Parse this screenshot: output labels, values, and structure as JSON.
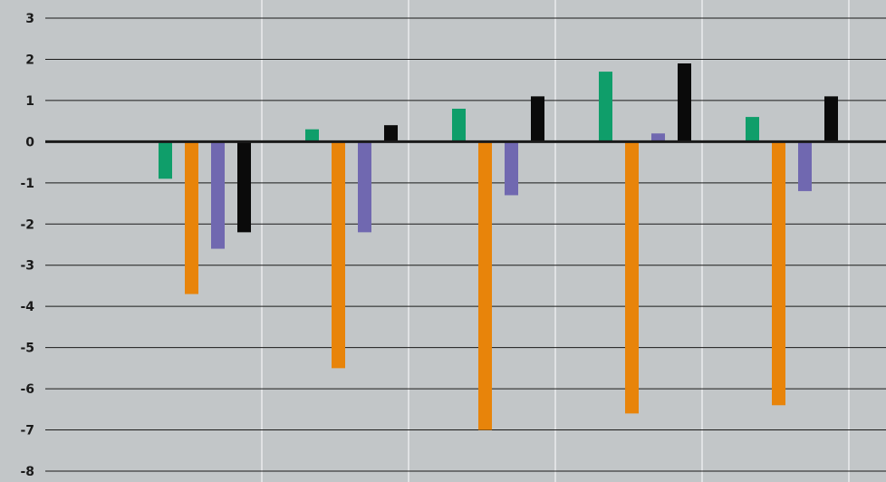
{
  "chart_data": {
    "type": "bar",
    "title": "",
    "xlabel": "",
    "ylabel": "",
    "ylim": [
      -8,
      3
    ],
    "yticks": [
      3,
      2,
      1,
      0,
      -1,
      -2,
      -3,
      -4,
      -5,
      -6,
      -7,
      -8
    ],
    "ytick_labels": [
      "3",
      "2",
      "1",
      "0",
      "-1",
      "-2",
      "-3",
      "-4",
      "-5",
      "-6",
      "-7",
      "-8"
    ],
    "grid": true,
    "legend": "none",
    "categories": [
      "",
      "",
      "",
      "",
      ""
    ],
    "series": [
      {
        "color": "#0f9e6a",
        "values": [
          -0.9,
          0.3,
          0.8,
          1.7,
          0.6
        ]
      },
      {
        "color": "#e8840a",
        "values": [
          -3.7,
          -5.5,
          -7.0,
          -6.6,
          -6.4
        ]
      },
      {
        "color": "#7068b0",
        "values": [
          -2.6,
          -2.2,
          -1.3,
          0.2,
          -1.2
        ]
      },
      {
        "color": "#0a0a0a",
        "values": [
          -2.2,
          0.4,
          1.1,
          1.9,
          1.1
        ]
      }
    ]
  }
}
